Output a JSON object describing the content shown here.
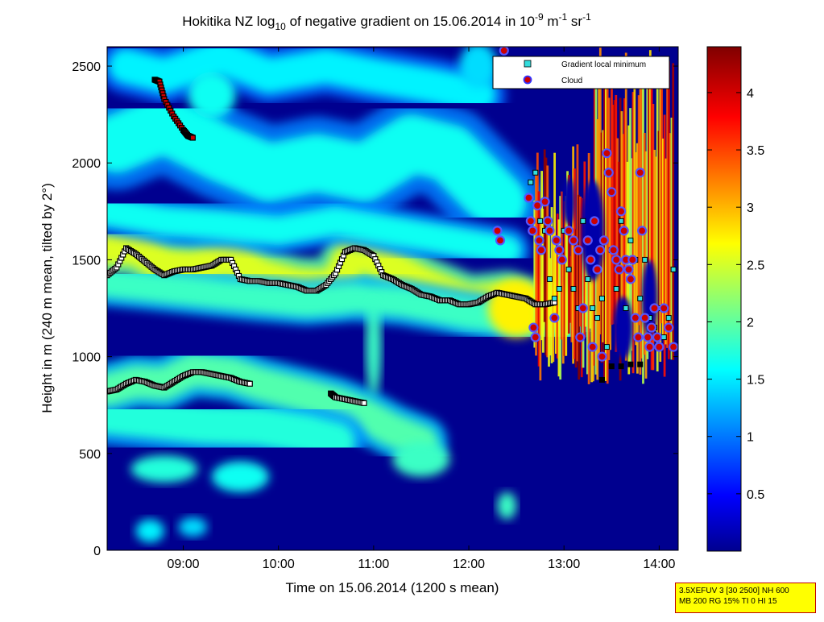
{
  "chart_data": {
    "type": "heatmap",
    "title_main": "Hokitika NZ log",
    "title_sub": "10",
    "title_mid": " of negative gradient on 15.06.2014 in 10",
    "title_sup1": "-9",
    "title_m": " m",
    "title_sup2": "-1",
    "title_sr": " sr",
    "title_sup3": "-1",
    "xlabel": "Time on 15.06.2014 (1200 s mean)",
    "ylabel": "Height in m (240 m mean, tilted by 2°)",
    "xlim": [
      8.2,
      14.2
    ],
    "ylim": [
      0,
      2600
    ],
    "xticks": [
      {
        "value": 9,
        "label": "09:00"
      },
      {
        "value": 10,
        "label": "10:00"
      },
      {
        "value": 11,
        "label": "11:00"
      },
      {
        "value": 12,
        "label": "12:00"
      },
      {
        "value": 13,
        "label": "13:00"
      },
      {
        "value": 14,
        "label": "14:00"
      }
    ],
    "yticks": [
      0,
      500,
      1000,
      1500,
      2000,
      2500
    ],
    "colorbar": {
      "range": [
        0,
        4.4
      ],
      "ticks": [
        "0.5",
        "1",
        "1.5",
        "2",
        "2.5",
        "3",
        "3.5",
        "4"
      ],
      "tick_values": [
        0.5,
        1,
        1.5,
        2,
        2.5,
        3,
        3.5,
        4
      ],
      "colormap": "jet"
    },
    "legend": {
      "position": "top-right",
      "entries": [
        {
          "label": "Gradient local minimum",
          "marker": "square",
          "color": "#33dddd"
        },
        {
          "label": "Cloud",
          "marker": "circle",
          "color": "#cc0000",
          "edge": "#3333ff"
        }
      ]
    },
    "layers": [
      {
        "name": "upper-aerosol",
        "points": [
          [
            8.2,
            1560
          ],
          [
            8.5,
            1560
          ],
          [
            8.8,
            1470
          ],
          [
            9.1,
            1460
          ],
          [
            9.5,
            1510
          ],
          [
            9.8,
            1420
          ],
          [
            10.2,
            1370
          ],
          [
            10.6,
            1360
          ],
          [
            10.8,
            1560
          ],
          [
            11.1,
            1480
          ],
          [
            11.5,
            1380
          ],
          [
            12.0,
            1280
          ],
          [
            12.4,
            1300
          ],
          [
            12.7,
            1250
          ],
          [
            13.0,
            1200
          ]
        ],
        "strength": 2.6,
        "thickness": 180
      },
      {
        "name": "upper-aerosol-under",
        "points": [
          [
            8.2,
            1380
          ],
          [
            8.6,
            1360
          ],
          [
            9.2,
            1330
          ],
          [
            9.8,
            1300
          ],
          [
            10.3,
            1280
          ],
          [
            10.8,
            1300
          ],
          [
            11.3,
            1280
          ],
          [
            12.0,
            1220
          ],
          [
            12.6,
            1180
          ],
          [
            13.0,
            1150
          ]
        ],
        "strength": 1.9,
        "thickness": 150
      },
      {
        "name": "lower-aerosol",
        "points": [
          [
            8.2,
            830
          ],
          [
            8.5,
            870
          ],
          [
            8.8,
            860
          ],
          [
            9.1,
            930
          ],
          [
            9.5,
            910
          ],
          [
            9.8,
            860
          ],
          [
            10.3,
            800
          ],
          [
            10.6,
            760
          ],
          [
            10.9,
            700
          ],
          [
            11.2,
            620
          ],
          [
            11.5,
            560
          ]
        ],
        "strength": 2.0,
        "thickness": 170
      },
      {
        "name": "lower-aerosol-2",
        "points": [
          [
            8.2,
            700
          ],
          [
            8.6,
            680
          ],
          [
            9.2,
            650
          ],
          [
            9.8,
            640
          ],
          [
            10.3,
            600
          ],
          [
            10.6,
            560
          ]
        ],
        "strength": 1.8,
        "thickness": 200
      },
      {
        "name": "upper-haze",
        "points": [
          [
            8.3,
            2100
          ],
          [
            8.8,
            2200
          ],
          [
            9.4,
            2050
          ],
          [
            9.9,
            1950
          ],
          [
            10.4,
            2000
          ],
          [
            10.9,
            1950
          ],
          [
            11.4,
            2100
          ],
          [
            11.8,
            2050
          ],
          [
            12.3,
            1800
          ]
        ],
        "strength": 1.7,
        "thickness": 300
      },
      {
        "name": "top-haze",
        "points": [
          [
            8.4,
            2500
          ],
          [
            8.8,
            2450
          ],
          [
            9.4,
            2550
          ],
          [
            9.9,
            2450
          ],
          [
            10.5,
            2500
          ],
          [
            11.0,
            2450
          ],
          [
            11.6,
            2400
          ],
          [
            12.1,
            2350
          ]
        ],
        "strength": 1.6,
        "thickness": 180
      },
      {
        "name": "mid-haze",
        "points": [
          [
            8.2,
            1750
          ],
          [
            8.8,
            1700
          ],
          [
            9.4,
            1680
          ],
          [
            10.0,
            1650
          ],
          [
            10.6,
            1700
          ],
          [
            11.2,
            1650
          ],
          [
            11.8,
            1600
          ],
          [
            12.4,
            1550
          ]
        ],
        "strength": 1.7,
        "thickness": 150
      }
    ],
    "blobs": [
      {
        "x": 8.8,
        "y": 420,
        "rx": 0.35,
        "ry": 70,
        "value": 1.8
      },
      {
        "x": 9.6,
        "y": 380,
        "rx": 0.3,
        "ry": 80,
        "value": 1.7
      },
      {
        "x": 8.65,
        "y": 100,
        "rx": 0.15,
        "ry": 60,
        "value": 1.6
      },
      {
        "x": 9.1,
        "y": 120,
        "rx": 0.15,
        "ry": 50,
        "value": 1.5
      },
      {
        "x": 11.5,
        "y": 470,
        "rx": 0.3,
        "ry": 90,
        "value": 1.9
      },
      {
        "x": 12.4,
        "y": 230,
        "rx": 0.1,
        "ry": 70,
        "value": 1.9
      },
      {
        "x": 11.0,
        "y": 1050,
        "rx": 0.08,
        "ry": 250,
        "value": 1.9
      },
      {
        "x": 12.5,
        "y": 1250,
        "rx": 0.3,
        "ry": 150,
        "value": 2.8
      },
      {
        "x": 12.9,
        "y": 1250,
        "rx": 0.2,
        "ry": 120,
        "value": 2.6
      },
      {
        "x": 9.3,
        "y": 2350,
        "rx": 0.25,
        "ry": 120,
        "value": 1.7
      },
      {
        "x": 12.1,
        "y": 2500,
        "rx": 0.2,
        "ry": 120,
        "value": 1.5
      }
    ],
    "cloud_region": {
      "x_start": 12.68,
      "x_end": 14.15,
      "y_start": 850,
      "y_end": 2600
    },
    "gradient_minimum_series": [
      {
        "name": "upper",
        "x": [
          8.2,
          8.3,
          8.4,
          8.5,
          8.6,
          8.7,
          8.8,
          8.9,
          9.0,
          9.1,
          9.2,
          9.3,
          9.4,
          9.5,
          9.6,
          9.7,
          9.8,
          9.9,
          10.0,
          10.1,
          10.2,
          10.3,
          10.4,
          10.5,
          10.6,
          10.7,
          10.8,
          10.9,
          11.0,
          11.1,
          11.2,
          11.3,
          11.4,
          11.5,
          11.6,
          11.7,
          11.8,
          11.9,
          12.0,
          12.1,
          12.2,
          12.3,
          12.4,
          12.5,
          12.6,
          12.7,
          12.8,
          12.9
        ],
        "y": [
          1420,
          1460,
          1560,
          1530,
          1490,
          1450,
          1420,
          1440,
          1450,
          1450,
          1460,
          1470,
          1500,
          1500,
          1400,
          1390,
          1390,
          1380,
          1380,
          1370,
          1360,
          1340,
          1340,
          1370,
          1430,
          1540,
          1560,
          1550,
          1520,
          1420,
          1400,
          1370,
          1350,
          1320,
          1310,
          1290,
          1290,
          1270,
          1270,
          1280,
          1310,
          1330,
          1320,
          1310,
          1300,
          1270,
          1270,
          1280
        ]
      },
      {
        "name": "lower",
        "x": [
          8.2,
          8.3,
          8.4,
          8.5,
          8.6,
          8.7,
          8.8,
          8.9,
          9.0,
          9.1,
          9.2,
          9.3,
          9.4,
          9.5,
          9.6,
          9.7
        ],
        "y": [
          820,
          830,
          860,
          880,
          870,
          850,
          840,
          870,
          900,
          920,
          920,
          910,
          900,
          890,
          870,
          860
        ]
      },
      {
        "name": "lower-tail",
        "x": [
          10.55,
          10.6,
          10.7,
          10.8,
          10.9
        ],
        "y": [
          810,
          790,
          780,
          770,
          760
        ]
      },
      {
        "name": "upper-tail",
        "x": [
          8.7,
          8.75,
          8.8,
          8.9,
          9.0,
          9.05,
          9.1
        ],
        "y": [
          2430,
          2420,
          2330,
          2240,
          2170,
          2140,
          2130
        ]
      }
    ],
    "cloud_points": [
      [
        12.63,
        1820
      ],
      [
        12.65,
        1700
      ],
      [
        12.67,
        1650
      ],
      [
        12.68,
        1150
      ],
      [
        12.7,
        1100
      ],
      [
        12.72,
        1780
      ],
      [
        12.74,
        1600
      ],
      [
        12.76,
        1550
      ],
      [
        12.8,
        1800
      ],
      [
        12.83,
        1700
      ],
      [
        12.85,
        1650
      ],
      [
        12.9,
        1200
      ],
      [
        12.92,
        1600
      ],
      [
        12.95,
        1550
      ],
      [
        12.98,
        1500
      ],
      [
        13.05,
        1650
      ],
      [
        13.1,
        1600
      ],
      [
        13.15,
        1550
      ],
      [
        13.17,
        1100
      ],
      [
        13.2,
        1250
      ],
      [
        13.25,
        1600
      ],
      [
        13.28,
        1500
      ],
      [
        13.3,
        1050
      ],
      [
        13.32,
        1700
      ],
      [
        13.35,
        1450
      ],
      [
        13.38,
        1550
      ],
      [
        13.4,
        1000
      ],
      [
        13.42,
        1600
      ],
      [
        13.45,
        2050
      ],
      [
        13.47,
        1950
      ],
      [
        13.5,
        1850
      ],
      [
        13.52,
        1550
      ],
      [
        13.55,
        1500
      ],
      [
        13.58,
        1450
      ],
      [
        13.6,
        1750
      ],
      [
        13.63,
        1650
      ],
      [
        13.65,
        1500
      ],
      [
        13.68,
        1450
      ],
      [
        13.7,
        1400
      ],
      [
        13.72,
        1500
      ],
      [
        13.75,
        1200
      ],
      [
        13.78,
        1100
      ],
      [
        13.8,
        1950
      ],
      [
        13.82,
        1650
      ],
      [
        13.85,
        1200
      ],
      [
        13.88,
        1100
      ],
      [
        13.9,
        1050
      ],
      [
        13.92,
        1150
      ],
      [
        13.95,
        1250
      ],
      [
        13.98,
        1100
      ],
      [
        14.0,
        1050
      ],
      [
        14.05,
        1250
      ],
      [
        14.1,
        1150
      ],
      [
        14.15,
        1050
      ],
      [
        12.3,
        1650
      ],
      [
        12.33,
        1600
      ],
      [
        12.37,
        2580
      ]
    ],
    "cloud_gradient_points": [
      [
        12.65,
        1900
      ],
      [
        12.7,
        1950
      ],
      [
        12.75,
        1700
      ],
      [
        12.8,
        1650
      ],
      [
        12.85,
        1400
      ],
      [
        12.9,
        1300
      ],
      [
        12.95,
        1350
      ],
      [
        13.0,
        1650
      ],
      [
        13.05,
        1450
      ],
      [
        13.1,
        1350
      ],
      [
        13.15,
        1250
      ],
      [
        13.2,
        1700
      ],
      [
        13.25,
        1400
      ],
      [
        13.3,
        1250
      ],
      [
        13.35,
        1200
      ],
      [
        13.4,
        1300
      ],
      [
        13.45,
        1050
      ],
      [
        13.5,
        1550
      ],
      [
        13.55,
        1350
      ],
      [
        13.6,
        1700
      ],
      [
        13.65,
        1250
      ],
      [
        13.7,
        1600
      ],
      [
        13.75,
        1500
      ],
      [
        13.8,
        1300
      ],
      [
        13.85,
        1500
      ],
      [
        13.9,
        1200
      ],
      [
        13.95,
        1150
      ],
      [
        14.0,
        1250
      ],
      [
        14.05,
        1100
      ],
      [
        14.1,
        1200
      ],
      [
        14.15,
        1450
      ],
      [
        13.5,
        950
      ],
      [
        13.6,
        950
      ],
      [
        13.7,
        960
      ],
      [
        13.8,
        960
      ],
      [
        13.4,
        880
      ]
    ]
  },
  "stamp": {
    "line1": "3.5XEFUV 3 [30 2500] NH 600",
    "line2": "MB 200 RG 15% TI 0 HI 15"
  }
}
